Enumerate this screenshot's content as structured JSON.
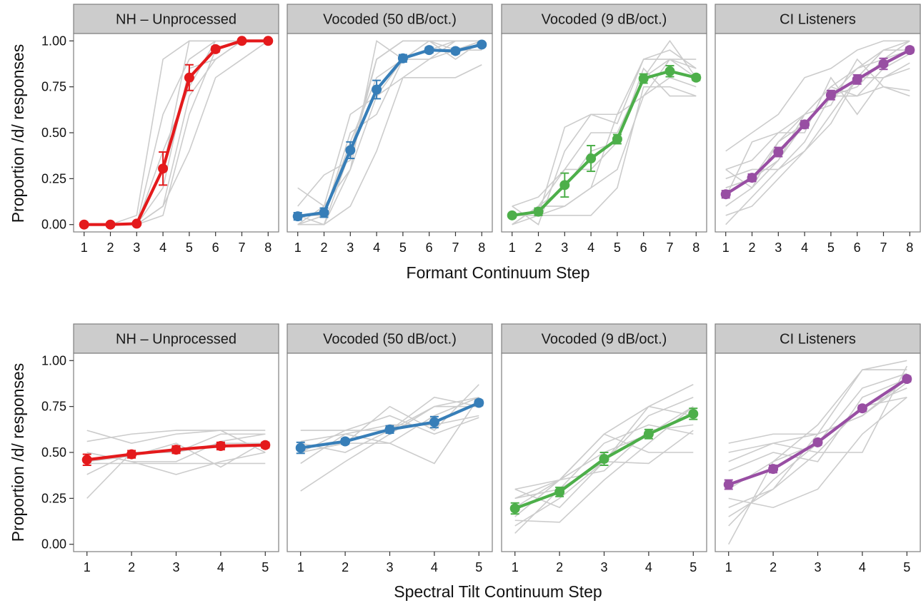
{
  "chart_data": {
    "type": "line",
    "y_axis_label": "Proportion /d/ responses",
    "y_ticks": [
      "0.00",
      "0.25",
      "0.50",
      "0.75",
      "1.00"
    ],
    "ylim": [
      -0.04,
      1.04
    ],
    "grid": false,
    "legend": "none",
    "panels": [
      "NH – Unprocessed",
      "Vocoded (50 dB/oct.)",
      "Vocoded (9 dB/oct.)",
      "CI Listeners"
    ],
    "panel_colors": [
      "#e41a1c",
      "#377eb8",
      "#4daf4a",
      "#984ea3"
    ],
    "individual_line_color": "#cccccc",
    "rows": [
      {
        "x_axis_label": "Formant Continuum Step",
        "x": [
          1,
          2,
          3,
          4,
          5,
          6,
          7,
          8
        ],
        "xlim": [
          0.6,
          8.4
        ],
        "mean": [
          [
            0.0,
            0.0,
            0.005,
            0.305,
            0.8,
            0.955,
            1.0,
            1.0
          ],
          [
            0.045,
            0.065,
            0.405,
            0.735,
            0.905,
            0.95,
            0.945,
            0.98
          ],
          [
            0.05,
            0.07,
            0.215,
            0.36,
            0.465,
            0.795,
            0.835,
            0.8
          ],
          [
            0.165,
            0.255,
            0.395,
            0.545,
            0.705,
            0.79,
            0.875,
            0.95
          ]
        ],
        "se": [
          [
            0.0,
            0.0,
            0.005,
            0.09,
            0.07,
            0.015,
            0.0,
            0.0
          ],
          [
            0.02,
            0.025,
            0.045,
            0.05,
            0.02,
            0.015,
            0.015,
            0.01
          ],
          [
            0.01,
            0.02,
            0.065,
            0.07,
            0.025,
            0.025,
            0.03,
            0.015
          ],
          [
            0.02,
            0.02,
            0.025,
            0.02,
            0.025,
            0.025,
            0.03,
            0.015
          ]
        ],
        "individuals": [
          [
            [
              0,
              0,
              0,
              0.1,
              0.7,
              0.9,
              1.0,
              1.0
            ],
            [
              0,
              0,
              0.05,
              0.9,
              1.0,
              1.0,
              1.0,
              1.0
            ],
            [
              0,
              0,
              0,
              0.6,
              0.9,
              1.0,
              1.0,
              1.0
            ],
            [
              0,
              0,
              0,
              0.2,
              0.85,
              0.9,
              1.0,
              1.0
            ],
            [
              0,
              0,
              0,
              0.1,
              0.4,
              0.8,
              0.9,
              1.0
            ],
            [
              0,
              0,
              0,
              0.3,
              1.0,
              1.0,
              1.0,
              1.0
            ],
            [
              0,
              0,
              0,
              0.05,
              0.6,
              0.95,
              1.0,
              1.0
            ],
            [
              0,
              0,
              0,
              0.4,
              0.75,
              1.0,
              1.0,
              1.0
            ]
          ],
          [
            [
              0,
              0,
              0.4,
              0.9,
              1.0,
              1.0,
              0.95,
              1.0
            ],
            [
              0,
              0.1,
              0.3,
              0.7,
              0.9,
              0.95,
              1.0,
              1.0
            ],
            [
              0.2,
              0.1,
              0.6,
              0.7,
              0.8,
              0.9,
              0.95,
              0.95
            ],
            [
              0.05,
              0.05,
              0.45,
              0.8,
              0.9,
              0.95,
              0.95,
              1.0
            ],
            [
              0,
              0,
              0.1,
              0.4,
              0.8,
              0.8,
              0.8,
              0.87
            ],
            [
              0.1,
              0.27,
              0.35,
              0.9,
              1.0,
              1.0,
              0.9,
              1.0
            ],
            [
              0,
              0.05,
              0.5,
              0.6,
              0.9,
              0.9,
              1.0,
              1.0
            ],
            [
              0.05,
              0,
              0.3,
              1.0,
              0.9,
              1.0,
              1.0,
              1.0
            ]
          ],
          [
            [
              0,
              0.1,
              0.1,
              0.2,
              0.3,
              0.7,
              0.8,
              0.75
            ],
            [
              0.1,
              0.0,
              0.4,
              0.6,
              0.6,
              0.9,
              0.95,
              0.85
            ],
            [
              0,
              0.1,
              0.3,
              0.3,
              0.45,
              0.8,
              0.9,
              0.8
            ],
            [
              0.05,
              0.05,
              0.05,
              0.05,
              0.2,
              0.75,
              0.75,
              0.7
            ],
            [
              0.1,
              0.15,
              0.3,
              0.5,
              0.5,
              0.8,
              1.0,
              0.8
            ],
            [
              0,
              0.05,
              0.53,
              0.6,
              0.55,
              0.9,
              0.9,
              0.85
            ],
            [
              0.05,
              0.05,
              0.1,
              0.2,
              0.6,
              0.7,
              0.9,
              0.9
            ],
            [
              0,
              0.1,
              0.2,
              0.4,
              0.45,
              0.85,
              0.7,
              0.7
            ]
          ],
          [
            [
              0.4,
              0.5,
              0.6,
              0.8,
              0.85,
              0.95,
              1.0,
              1.0
            ],
            [
              0.3,
              0.2,
              0.45,
              0.55,
              0.7,
              0.75,
              0.9,
              1.0
            ],
            [
              0.25,
              0.3,
              0.3,
              0.4,
              0.6,
              0.8,
              0.8,
              0.85
            ],
            [
              0.1,
              0.2,
              0.35,
              0.6,
              0.75,
              0.85,
              0.9,
              0.95
            ],
            [
              0,
              0.15,
              0.3,
              0.45,
              0.7,
              0.7,
              0.75,
              0.7
            ],
            [
              0.2,
              0.25,
              0.45,
              0.6,
              0.65,
              0.9,
              0.75,
              0.73
            ],
            [
              0.15,
              0.45,
              0.5,
              0.5,
              0.8,
              0.6,
              0.8,
              0.88
            ],
            [
              0.05,
              0.1,
              0.25,
              0.4,
              0.55,
              0.8,
              0.95,
              0.95
            ],
            [
              0.3,
              0.35,
              0.5,
              0.6,
              0.75,
              0.7,
              0.85,
              0.93
            ],
            [
              0.2,
              0.25,
              0.35,
              0.55,
              0.7,
              0.85,
              0.95,
              1.0
            ]
          ]
        ]
      },
      {
        "x_axis_label": "Spectral Tilt Continuum Step",
        "x": [
          1,
          2,
          3,
          4,
          5
        ],
        "xlim": [
          0.7,
          5.3
        ],
        "mean": [
          [
            0.46,
            0.49,
            0.515,
            0.535,
            0.54
          ],
          [
            0.525,
            0.56,
            0.625,
            0.665,
            0.77
          ],
          [
            0.195,
            0.285,
            0.465,
            0.6,
            0.71
          ],
          [
            0.325,
            0.41,
            0.555,
            0.74,
            0.9
          ]
        ],
        "se": [
          [
            0.03,
            0.02,
            0.02,
            0.02,
            0.015
          ],
          [
            0.03,
            0.015,
            0.02,
            0.03,
            0.015
          ],
          [
            0.03,
            0.025,
            0.035,
            0.025,
            0.03
          ],
          [
            0.025,
            0.02,
            0.015,
            0.015,
            0.015
          ]
        ],
        "individuals": [
          [
            [
              0.25,
              0.5,
              0.5,
              0.6,
              0.6
            ],
            [
              0.62,
              0.55,
              0.6,
              0.62,
              0.5
            ],
            [
              0.5,
              0.45,
              0.38,
              0.45,
              0.5
            ],
            [
              0.44,
              0.44,
              0.44,
              0.44,
              0.44
            ],
            [
              0.56,
              0.6,
              0.62,
              0.62,
              0.62
            ],
            [
              0.38,
              0.5,
              0.5,
              0.55,
              0.55
            ],
            [
              0.45,
              0.48,
              0.55,
              0.42,
              0.56
            ],
            [
              0.5,
              0.45,
              0.45,
              0.56,
              0.6
            ]
          ],
          [
            [
              0.29,
              0.45,
              0.6,
              0.75,
              0.8
            ],
            [
              0.62,
              0.62,
              0.62,
              0.75,
              0.75
            ],
            [
              0.5,
              0.55,
              0.75,
              0.62,
              0.87
            ],
            [
              0.44,
              0.6,
              0.55,
              0.44,
              0.8
            ],
            [
              0.55,
              0.5,
              0.62,
              0.8,
              0.75
            ],
            [
              0.5,
              0.62,
              0.7,
              0.6,
              0.69
            ],
            [
              0.5,
              0.55,
              0.55,
              0.7,
              0.8
            ],
            [
              0.56,
              0.6,
              0.65,
              0.65,
              0.7
            ]
          ],
          [
            [
              0.1,
              0.25,
              0.45,
              0.75,
              0.87
            ],
            [
              0.25,
              0.35,
              0.5,
              0.6,
              0.75
            ],
            [
              0.3,
              0.2,
              0.45,
              0.7,
              0.8
            ],
            [
              0.15,
              0.35,
              0.6,
              0.5,
              0.5
            ],
            [
              0.06,
              0.3,
              0.55,
              0.65,
              0.6
            ],
            [
              0.13,
              0.12,
              0.35,
              0.55,
              0.75
            ],
            [
              0.2,
              0.35,
              0.4,
              0.62,
              0.65
            ],
            [
              0.25,
              0.3,
              0.45,
              0.44,
              0.62
            ],
            [
              0.3,
              0.35,
              0.6,
              0.75,
              0.7
            ]
          ],
          [
            [
              0.0,
              0.45,
              0.65,
              0.95,
              1.0
            ],
            [
              0.1,
              0.35,
              0.55,
              0.75,
              0.85
            ],
            [
              0.2,
              0.3,
              0.6,
              0.7,
              0.9
            ],
            [
              0.25,
              0.2,
              0.3,
              0.6,
              0.8
            ],
            [
              0.5,
              0.55,
              0.5,
              0.5,
              0.97
            ],
            [
              0.3,
              0.45,
              0.55,
              0.85,
              0.93
            ],
            [
              0.4,
              0.5,
              0.45,
              0.8,
              0.9
            ],
            [
              0.55,
              0.6,
              0.6,
              0.95,
              0.95
            ],
            [
              0.15,
              0.3,
              0.5,
              0.75,
              0.8
            ],
            [
              0.45,
              0.55,
              0.6,
              0.7,
              0.88
            ]
          ]
        ]
      }
    ]
  }
}
